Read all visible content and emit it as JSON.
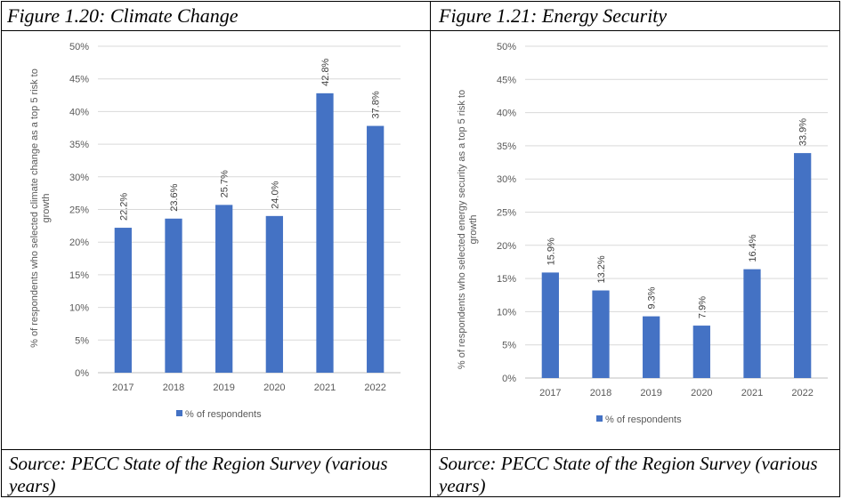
{
  "panels": [
    {
      "figure_title": "Figure 1.20: Climate Change",
      "source": "Source: PECC State of the Region Survey (various years)"
    },
    {
      "figure_title": "Figure 1.21: Energy Security",
      "source": "Source: PECC State of the Region Survey (various years)"
    }
  ],
  "chart_data": [
    {
      "type": "bar",
      "categories": [
        "2017",
        "2018",
        "2019",
        "2020",
        "2021",
        "2022"
      ],
      "series": [
        {
          "name": "% of respondents",
          "values": [
            22.2,
            23.6,
            25.7,
            24.0,
            42.8,
            37.8
          ]
        }
      ],
      "data_labels": [
        "22.2%",
        "23.6%",
        "25.7%",
        "24.0%",
        "42.8%",
        "37.8%"
      ],
      "ylabel": "% of respondents who selected climate change as a top 5 risk to growth",
      "ylim": [
        0,
        50
      ],
      "yticks": [
        "0%",
        "5%",
        "10%",
        "15%",
        "20%",
        "25%",
        "30%",
        "35%",
        "40%",
        "45%",
        "50%"
      ],
      "grid": true,
      "legend": "bottom",
      "bar_color": "#4472C4"
    },
    {
      "type": "bar",
      "categories": [
        "2017",
        "2018",
        "2019",
        "2020",
        "2021",
        "2022"
      ],
      "series": [
        {
          "name": "% of respondents",
          "values": [
            15.9,
            13.2,
            9.3,
            7.9,
            16.4,
            33.9
          ]
        }
      ],
      "data_labels": [
        "15.9%",
        "13.2%",
        "9.3%",
        "7.9%",
        "16.4%",
        "33.9%"
      ],
      "ylabel": "% of respondents who selected energy security as a top 5 risk to growth",
      "ylim": [
        0,
        50
      ],
      "yticks": [
        "0%",
        "5%",
        "10%",
        "15%",
        "20%",
        "25%",
        "30%",
        "35%",
        "40%",
        "45%",
        "50%"
      ],
      "grid": true,
      "legend": "bottom",
      "bar_color": "#4472C4"
    }
  ]
}
